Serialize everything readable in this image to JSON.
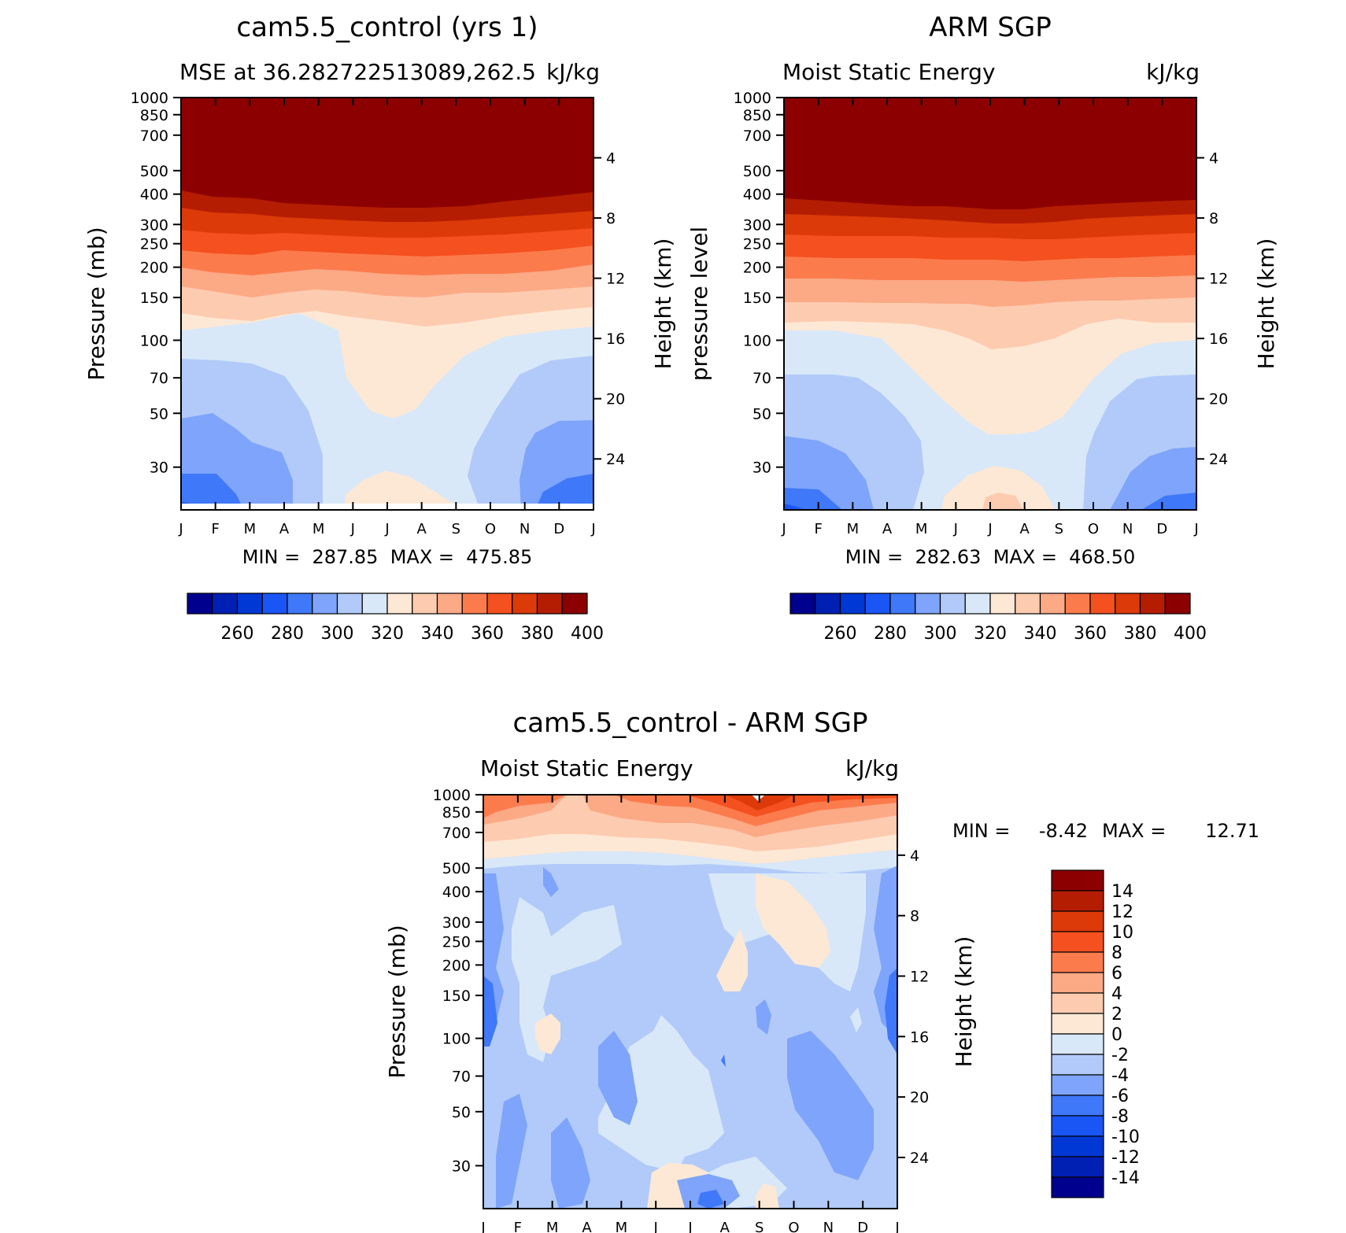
{
  "chart_data": [
    {
      "id": "top-left",
      "type": "heatmap",
      "title": "cam5.5_control (yrs 1)",
      "subtitle_left": "MSE at 36.282722513089,262.5",
      "subtitle_right": "kJ/kg",
      "ylabel": "Pressure (mb)",
      "ylabel_right": "Height (km)",
      "x_ticks": [
        "J",
        "F",
        "M",
        "A",
        "M",
        "J",
        "J",
        "A",
        "S",
        "O",
        "N",
        "D",
        "J"
      ],
      "y_ticks": [
        30,
        50,
        70,
        100,
        150,
        200,
        250,
        300,
        400,
        500,
        700,
        850,
        1000
      ],
      "y_range_mb": [
        1000,
        20
      ],
      "height_ticks_km": [
        4,
        8,
        12,
        16,
        20,
        24
      ],
      "stats": "MIN =  287.85  MAX =  475.85",
      "colorbar": {
        "orientation": "horizontal",
        "labels": [
          260,
          280,
          300,
          320,
          340,
          360,
          380,
          400
        ],
        "colors": [
          "#00008f",
          "#0020b4",
          "#0038d6",
          "#1a55f5",
          "#3f78f8",
          "#7ea4fb",
          "#b1caf9",
          "#d8e8f8",
          "#fde8d5",
          "#fdcbb0",
          "#fca985",
          "#fc7b4d",
          "#f5501f",
          "#dc3a08",
          "#b51d02",
          "#8c0001"
        ]
      },
      "contour_levels_kJkg": [
        260,
        270,
        280,
        290,
        300,
        310,
        320,
        330,
        340,
        350,
        360,
        370,
        380,
        390,
        400
      ]
    },
    {
      "id": "top-right",
      "type": "heatmap",
      "title": "ARM SGP",
      "subtitle_left": "Moist Static Energy",
      "subtitle_right": "kJ/kg",
      "ylabel": "pressure level",
      "ylabel_right": "Height (km)",
      "x_ticks": [
        "J",
        "F",
        "M",
        "A",
        "M",
        "J",
        "J",
        "A",
        "S",
        "O",
        "N",
        "D",
        "J"
      ],
      "y_ticks": [
        30,
        50,
        70,
        100,
        150,
        200,
        250,
        300,
        400,
        500,
        700,
        850,
        1000
      ],
      "y_range_mb": [
        1000,
        20
      ],
      "height_ticks_km": [
        4,
        8,
        12,
        16,
        20,
        24
      ],
      "stats": "MIN =  282.63  MAX =  468.50",
      "colorbar": {
        "orientation": "horizontal",
        "labels": [
          260,
          280,
          300,
          320,
          340,
          360,
          380,
          400
        ],
        "colors": [
          "#00008f",
          "#0020b4",
          "#0038d6",
          "#1a55f5",
          "#3f78f8",
          "#7ea4fb",
          "#b1caf9",
          "#d8e8f8",
          "#fde8d5",
          "#fdcbb0",
          "#fca985",
          "#fc7b4d",
          "#f5501f",
          "#dc3a08",
          "#b51d02",
          "#8c0001"
        ]
      },
      "contour_levels_kJkg": [
        260,
        270,
        280,
        290,
        300,
        310,
        320,
        330,
        340,
        350,
        360,
        370,
        380,
        390,
        400
      ]
    },
    {
      "id": "bottom",
      "type": "heatmap",
      "title": "cam5.5_control - ARM SGP",
      "subtitle_left": "Moist Static Energy",
      "subtitle_right": "kJ/kg",
      "ylabel": "Pressure (mb)",
      "ylabel_right": "Height (km)",
      "x_ticks": [
        "J",
        "F",
        "M",
        "A",
        "M",
        "J",
        "J",
        "A",
        "S",
        "O",
        "N",
        "D",
        "J"
      ],
      "y_ticks": [
        30,
        50,
        70,
        100,
        150,
        200,
        250,
        300,
        400,
        500,
        700,
        850,
        1000
      ],
      "y_range_mb": [
        1000,
        20
      ],
      "height_ticks_km": [
        4,
        8,
        12,
        16,
        20,
        24
      ],
      "stats_min_label": "MIN =",
      "stats_min_value": "-8.42",
      "stats_max_label": "MAX =",
      "stats_max_value": "12.71",
      "colorbar": {
        "orientation": "vertical",
        "labels": [
          14,
          12,
          10,
          8,
          6,
          4,
          2,
          0,
          -2,
          -4,
          -6,
          -8,
          -10,
          -12,
          -14
        ],
        "colors": [
          "#8c0001",
          "#b51d02",
          "#dc3a08",
          "#f5501f",
          "#fc7b4d",
          "#fca985",
          "#fdcbb0",
          "#fde8d5",
          "#d8e8f8",
          "#b1caf9",
          "#7ea4fb",
          "#3f78f8",
          "#1a55f5",
          "#0038d6",
          "#0020b4",
          "#00008f"
        ]
      }
    }
  ]
}
